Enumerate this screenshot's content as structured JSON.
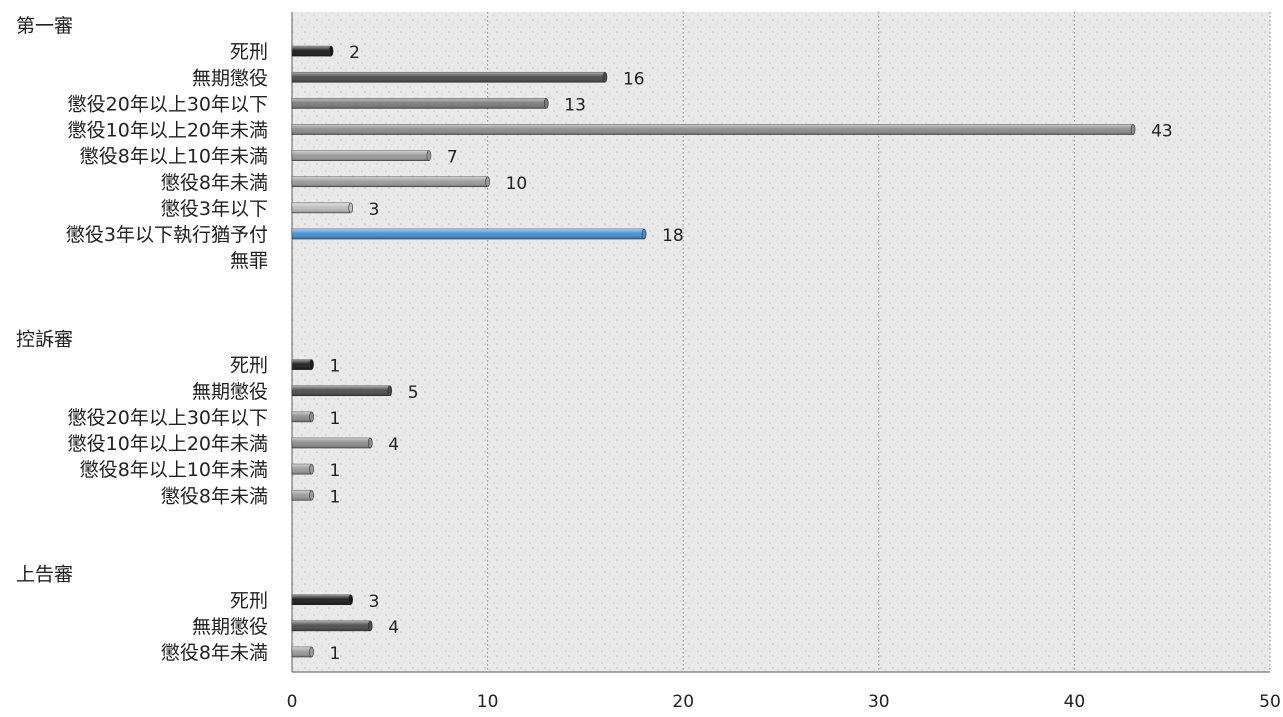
{
  "chart_data": {
    "type": "bar",
    "orientation": "horizontal",
    "xlim": [
      0,
      50
    ],
    "x_ticks": [
      "0",
      "10",
      "20",
      "30",
      "40",
      "50"
    ],
    "grid": "vertical-dotted",
    "groups": [
      {
        "title": "第一審",
        "bars": [
          {
            "label": "死刑",
            "value": 2,
            "color": "#1a1a1a"
          },
          {
            "label": "無期懲役",
            "value": 16,
            "color": "#4a4a4a"
          },
          {
            "label": "懲役20年以上30年以下",
            "value": 13,
            "color": "#7a7a7a"
          },
          {
            "label": "懲役10年以上20年未満",
            "value": 43,
            "color": "#8c8c8c"
          },
          {
            "label": "懲役8年以上10年未満",
            "value": 7,
            "color": "#9a9a9a"
          },
          {
            "label": "懲役8年未満",
            "value": 10,
            "color": "#9a9a9a"
          },
          {
            "label": "懲役3年以下",
            "value": 3,
            "color": "#bcbcbc"
          },
          {
            "label": "懲役3年以下執行猶予付",
            "value": 18,
            "color": "#3f8fd6"
          },
          {
            "label": "無罪",
            "value": null,
            "color": "#bcbcbc"
          }
        ]
      },
      {
        "title": "控訴審",
        "bars": [
          {
            "label": "死刑",
            "value": 1,
            "color": "#1a1a1a"
          },
          {
            "label": "無期懲役",
            "value": 5,
            "color": "#4a4a4a"
          },
          {
            "label": "懲役20年以上30年以下",
            "value": 1,
            "color": "#8c8c8c"
          },
          {
            "label": "懲役10年以上20年未満",
            "value": 4,
            "color": "#8c8c8c"
          },
          {
            "label": "懲役8年以上10年未満",
            "value": 1,
            "color": "#9a9a9a"
          },
          {
            "label": "懲役8年未満",
            "value": 1,
            "color": "#9a9a9a"
          }
        ]
      },
      {
        "title": "上告審",
        "bars": [
          {
            "label": "死刑",
            "value": 3,
            "color": "#1a1a1a"
          },
          {
            "label": "無期懲役",
            "value": 4,
            "color": "#4a4a4a"
          },
          {
            "label": "懲役8年未満",
            "value": 1,
            "color": "#9a9a9a"
          }
        ]
      }
    ]
  }
}
